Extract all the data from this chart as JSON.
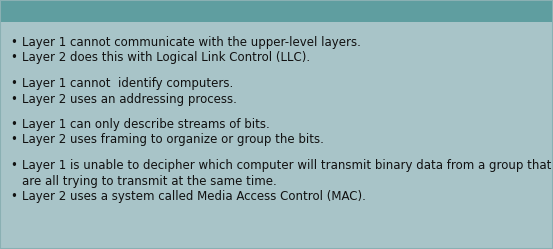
{
  "bg_color": "#a8c4c8",
  "header_color": "#5f9ea0",
  "border_color": "#8ab0b3",
  "text_color": "#111111",
  "bullet_char": "•",
  "font_size": 8.5,
  "line_groups": [
    [
      "Layer 1 cannot communicate with the upper-level layers.",
      "Layer 2 does this with Logical Link Control (LLC)."
    ],
    [
      "Layer 1 cannot  identify computers.",
      "Layer 2 uses an addressing process."
    ],
    [
      "Layer 1 can only describe streams of bits.",
      "Layer 2 uses framing to organize or group the bits."
    ],
    [
      "Layer 1 is unable to decipher which computer will transmit binary data from a group that\n    are all trying to transmit at the same time.",
      "Layer 2 uses a system called Media Access Control (MAC)."
    ]
  ]
}
